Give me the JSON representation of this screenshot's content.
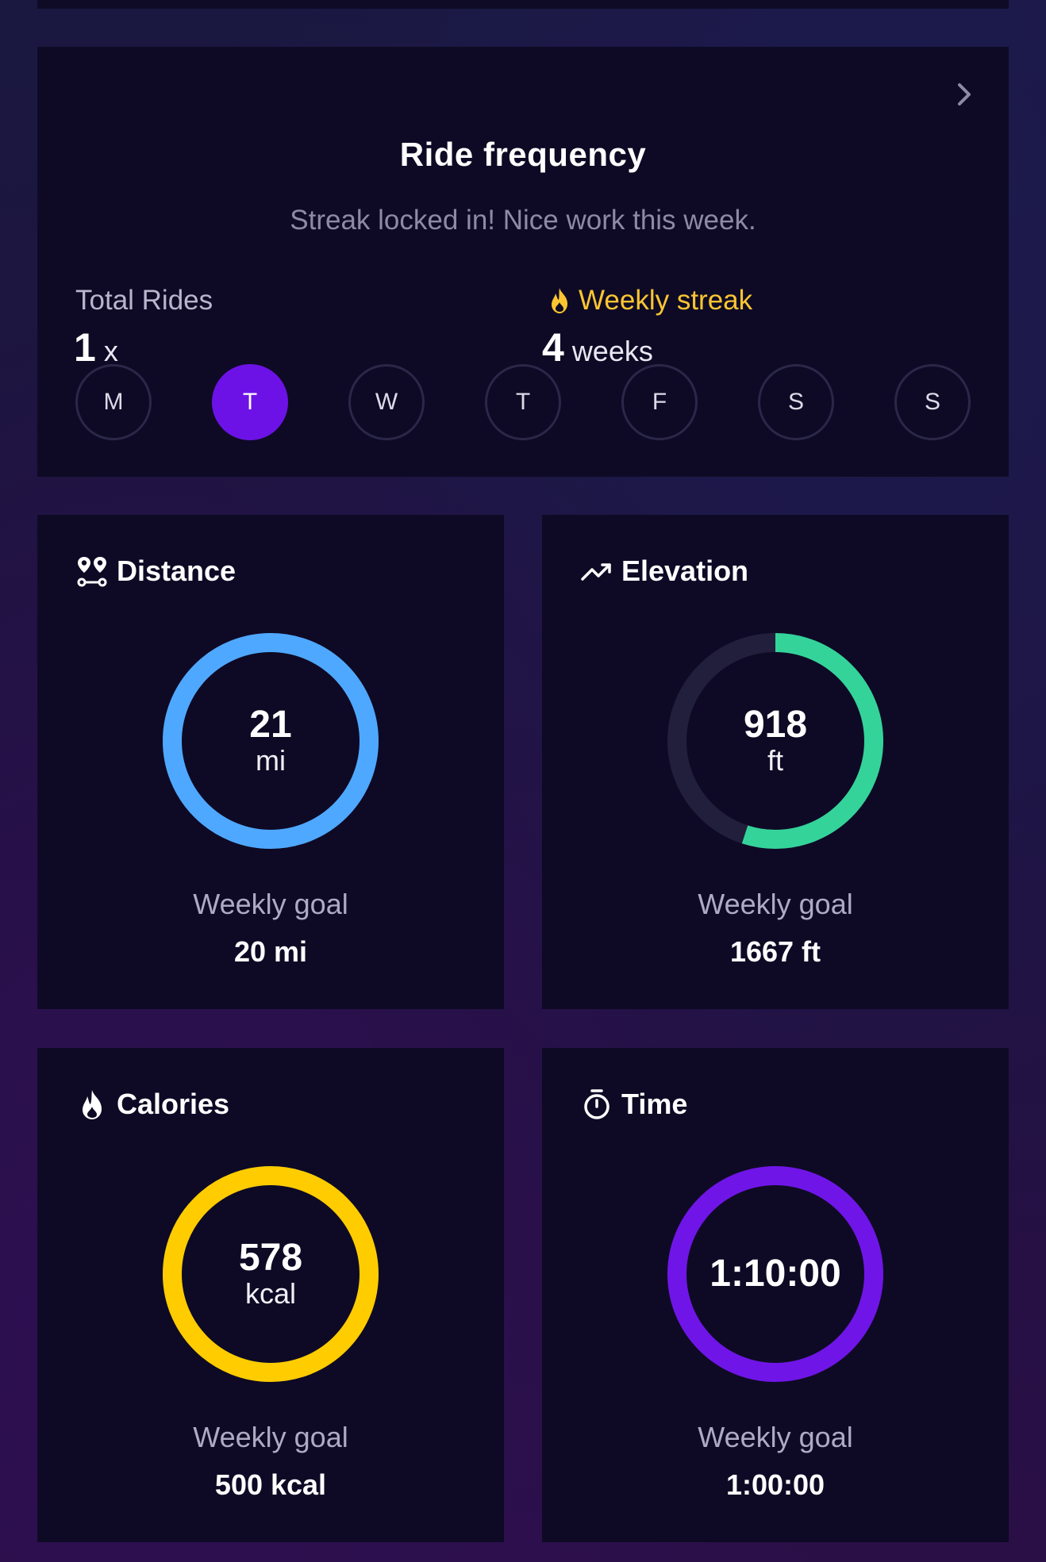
{
  "colors": {
    "accent_purple": "#6d12e6",
    "streak_yellow": "#fbc531",
    "distance_blue": "#4fa8ff",
    "elevation_green": "#34d39a",
    "calories_yellow": "#ffcc00",
    "time_purple": "#7015e8"
  },
  "frequency": {
    "title": "Ride frequency",
    "chevron_icon": "chevron-right-icon",
    "subtitle": "Streak locked in! Nice work this week.",
    "total_rides": {
      "label": "Total Rides",
      "value": "1",
      "unit": "x"
    },
    "weekly_streak": {
      "icon": "flame-icon",
      "label": "Weekly streak",
      "value": "4",
      "unit": "weeks"
    },
    "days": [
      {
        "label": "M",
        "active": false
      },
      {
        "label": "T",
        "active": true
      },
      {
        "label": "W",
        "active": false
      },
      {
        "label": "T",
        "active": false
      },
      {
        "label": "F",
        "active": false
      },
      {
        "label": "S",
        "active": false
      },
      {
        "label": "S",
        "active": false
      }
    ]
  },
  "metrics": {
    "distance": {
      "icon": "route-icon",
      "title": "Distance",
      "value": "21",
      "unit": "mi",
      "progress": 1.0,
      "goal_label": "Weekly goal",
      "goal_value": "20 mi"
    },
    "elevation": {
      "icon": "trending-up-icon",
      "title": "Elevation",
      "value": "918",
      "unit": "ft",
      "progress": 0.55,
      "goal_label": "Weekly goal",
      "goal_value": "1667 ft"
    },
    "calories": {
      "icon": "flame-icon",
      "title": "Calories",
      "value": "578",
      "unit": "kcal",
      "progress": 1.0,
      "goal_label": "Weekly goal",
      "goal_value": "500 kcal"
    },
    "time": {
      "icon": "stopwatch-icon",
      "title": "Time",
      "value": "1:10:00",
      "unit": "",
      "progress": 1.0,
      "goal_label": "Weekly goal",
      "goal_value": "1:00:00"
    }
  }
}
